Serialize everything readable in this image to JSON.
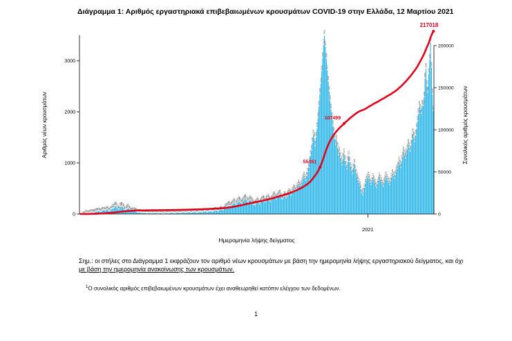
{
  "page": {
    "title": "Διάγραμμα 1: Αριθμός εργαστηριακά επιβεβαιωμένων κρουσμάτων COVID-19 στην Ελλάδα, 12 Μαρτίου 2021",
    "note": {
      "part1": "Σημ.: οι στήλες στο Διάγραμμα 1 εκφράζουν τον αριθμό νέων κρουσμάτων με βάση την ημερομηνία λήψης εργαστηριακού δείγματος, και όχι",
      "part2": "με βάση την ημερομηνία ανακοίνωσης των κρουσμάτων."
    },
    "footnote": {
      "marker": "1",
      "text": "Ο συνολικός αριθμός επιβεβαιωμένων κρουσμάτων έχει αναθεωρηθεί κατόπιν ελέγχου των δεδομένων."
    },
    "page_number": "1"
  },
  "chart_data": {
    "type": "bar+line combo (epidemic curve with cumulative line)",
    "title": "Διάγραμμα 1: Αριθμός εργαστηριακά επιβεβαιωμένων κρουσμάτων COVID-19 στην Ελλάδα, 12 Μαρτίου 2021",
    "xlabel": "Ημερομηνία λήψης δείγματος",
    "ylabel_left": "Αριθμός νέων κρουσμάτων",
    "ylabel_right": "Συνολικός αριθμός κρουσμάτων",
    "ylim_left": [
      0,
      3500
    ],
    "yticks_left": [
      0,
      1000,
      2000,
      3000
    ],
    "ylim_right": [
      0,
      200000
    ],
    "yticks_right": [
      0,
      50000,
      100000,
      150000,
      200000
    ],
    "x_ticks": [
      {
        "label": "2021",
        "index": 310
      }
    ],
    "n_points": 381,
    "grid": false,
    "legend": "none",
    "colors": {
      "bar": "#29b5e8",
      "line": "#e2001a"
    },
    "total_cases_final": 217018,
    "series": [
      {
        "name": "daily_new_cases",
        "type": "bar",
        "axis": "left",
        "values": [
          1,
          3,
          4,
          7,
          5,
          8,
          10,
          14,
          12,
          9,
          16,
          21,
          24,
          31,
          28,
          20,
          35,
          46,
          52,
          48,
          61,
          57,
          39,
          44,
          68,
          74,
          81,
          65,
          70,
          92,
          86,
          60,
          55,
          78,
          95,
          102,
          110,
          129,
          156,
          148,
          121,
          96,
          88,
          134,
          142,
          151,
          137,
          118,
          84,
          76,
          95,
          103,
          121,
          99,
          81,
          60,
          52,
          64,
          71,
          58,
          49,
          38,
          30,
          25,
          33,
          28,
          21,
          15,
          19,
          24,
          17,
          12,
          10,
          14,
          18,
          22,
          16,
          11,
          9,
          13,
          17,
          21,
          15,
          10,
          8,
          12,
          16,
          20,
          14,
          9,
          7,
          11,
          15,
          19,
          13,
          10,
          14,
          18,
          23,
          29,
          21,
          16,
          12,
          19,
          25,
          31,
          27,
          20,
          15,
          22,
          28,
          35,
          30,
          24,
          18,
          26,
          33,
          39,
          32,
          25,
          21,
          29,
          37,
          44,
          36,
          28,
          24,
          30,
          37,
          45,
          38,
          29,
          35,
          43,
          52,
          48,
          40,
          33,
          41,
          50,
          61,
          55,
          47,
          39,
          58,
          66,
          74,
          68,
          57,
          49,
          72,
          85,
          93,
          81,
          70,
          96,
          110,
          118,
          135,
          151,
          169,
          148,
          126,
          160,
          182,
          203,
          226,
          197,
          171,
          210,
          235,
          262,
          241,
          214,
          188,
          229,
          258,
          284,
          305,
          271,
          243,
          216,
          252,
          279,
          262,
          230,
          204,
          176,
          168,
          195,
          223,
          251,
          216,
          182,
          205,
          238,
          266,
          291,
          259,
          224,
          247,
          280,
          312,
          286,
          254,
          228,
          269,
          301,
          334,
          358,
          322,
          285,
          310,
          346,
          372,
          389,
          341,
          296,
          285,
          322,
          358,
          331,
          298,
          340,
          386,
          421,
          395,
          362,
          412,
          448,
          495,
          467,
          430,
          482,
          531,
          584,
          548,
          502,
          566,
          625,
          689,
          742,
          701,
          654,
          738,
          820,
          905,
          1012,
          1145,
          1238,
          1390,
          1552,
          1484,
          1326,
          1501,
          1678,
          1882,
          2106,
          2348,
          2556,
          2801,
          3056,
          3316,
          3495,
          3276,
          3038,
          2812,
          2595,
          2402,
          2213,
          2046,
          1884,
          1725,
          1590,
          1468,
          1352,
          1440,
          1296,
          1152,
          1205,
          1098,
          1012,
          956,
          1088,
          1176,
          1042,
          948,
          876,
          1024,
          1132,
          1015,
          924,
          848,
          782,
          905,
          988,
          872,
          796,
          724,
          668,
          612,
          548,
          486,
          412,
          370,
          428,
          512,
          596,
          648,
          701,
          742,
          688,
          615,
          570,
          634,
          712,
          668,
          605,
          548,
          512,
          586,
          652,
          721,
          678,
          624,
          581,
          535,
          608,
          672,
          745,
          701,
          654,
          612,
          568,
          641,
          715,
          788,
          742,
          695,
          758,
          826,
          885,
          942,
          1014,
          968,
          902,
          1046,
          1118,
          1205,
          1152,
          1088,
          1176,
          1264,
          1358,
          1296,
          1224,
          1342,
          1456,
          1568,
          1495,
          1412,
          1538,
          1672,
          1814,
          1962,
          2105,
          2038,
          1956,
          2124,
          2115,
          2284,
          2656,
          2848,
          2512,
          2380,
          2738,
          3025,
          3362,
          2864,
          2345,
          2017
        ]
      },
      {
        "name": "cumulative_cases",
        "type": "line",
        "axis": "right",
        "derivation": "cumulative_sum_of_daily_new_cases",
        "final_value": 217018
      }
    ],
    "annotations": [
      {
        "index": 258,
        "label": "55451"
      },
      {
        "index": 284,
        "label": "107499"
      },
      {
        "index": 380,
        "label": "217018"
      }
    ]
  }
}
